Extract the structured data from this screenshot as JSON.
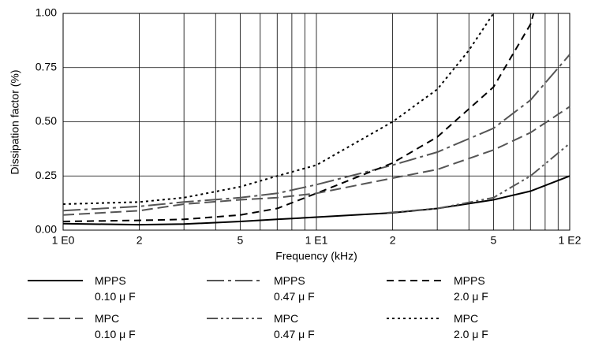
{
  "chart_data": {
    "type": "line",
    "x_label": "Frequency (kHz)",
    "y_label": "Dissipation factor (%)",
    "xscale": "log",
    "xlim": [
      1,
      100
    ],
    "xticks": [
      {
        "value": 1,
        "label": "1 E0"
      },
      2,
      5,
      {
        "value": 10,
        "label": "1 E1"
      },
      {
        "value": 20,
        "label": "2"
      },
      {
        "value": 50,
        "label": "5"
      },
      {
        "value": 100,
        "label": "1 E2"
      }
    ],
    "x_minor_grid": [
      3,
      4,
      6,
      7,
      8,
      9,
      30,
      40,
      60,
      70,
      80,
      90
    ],
    "ylim": [
      0,
      1
    ],
    "yticks": [
      {
        "value": 0,
        "label": "0.00"
      },
      {
        "value": 0.25,
        "label": "0.25"
      },
      {
        "value": 0.5,
        "label": "0.50"
      },
      {
        "value": 0.75,
        "label": "0.75"
      },
      {
        "value": 1,
        "label": "1.00"
      }
    ],
    "grid": true,
    "legend": "bottom",
    "series": [
      {
        "name": "MPPS\n0.10 μ F",
        "color": "#000000",
        "dash": "none",
        "x": [
          1,
          2,
          3,
          5,
          7,
          10,
          20,
          30,
          50,
          70,
          100
        ],
        "values": [
          0.03,
          0.025,
          0.028,
          0.04,
          0.05,
          0.06,
          0.08,
          0.1,
          0.14,
          0.18,
          0.25
        ]
      },
      {
        "name": "MPPS\n0.47 μ F",
        "color": "#555555",
        "dash": "22 5 4 5",
        "x": [
          1,
          2,
          3,
          5,
          7,
          10,
          20,
          30,
          50,
          70,
          100
        ],
        "values": [
          0.09,
          0.11,
          0.13,
          0.15,
          0.17,
          0.21,
          0.3,
          0.36,
          0.47,
          0.6,
          0.81
        ]
      },
      {
        "name": "MPPS\n2.0 μ F",
        "color": "#000000",
        "dash": "9 6",
        "x": [
          1,
          2,
          3,
          5,
          7,
          10,
          20,
          30,
          50,
          70,
          72
        ],
        "values": [
          0.04,
          0.045,
          0.05,
          0.07,
          0.1,
          0.17,
          0.31,
          0.43,
          0.66,
          0.95,
          1.0
        ]
      },
      {
        "name": "MPC\n0.10 μ F",
        "color": "#555555",
        "dash": "14 6",
        "x": [
          1,
          2,
          3,
          5,
          7,
          10,
          20,
          30,
          50,
          70,
          100
        ],
        "values": [
          0.07,
          0.09,
          0.12,
          0.14,
          0.15,
          0.17,
          0.24,
          0.28,
          0.37,
          0.45,
          0.57
        ]
      },
      {
        "name": "MPC\n0.47 μ F",
        "color": "#555555",
        "dash": "14 4 3 4 3 4",
        "x": [
          19,
          30,
          50,
          70,
          100
        ],
        "values": [
          0.08,
          0.1,
          0.15,
          0.25,
          0.4
        ]
      },
      {
        "name": "MPC\n2.0 μ F",
        "color": "#000000",
        "dash": "3 4",
        "x": [
          1,
          2,
          3,
          5,
          7,
          10,
          20,
          30,
          40,
          50
        ],
        "values": [
          0.12,
          0.13,
          0.15,
          0.2,
          0.25,
          0.3,
          0.5,
          0.65,
          0.83,
          1.0
        ]
      }
    ]
  }
}
